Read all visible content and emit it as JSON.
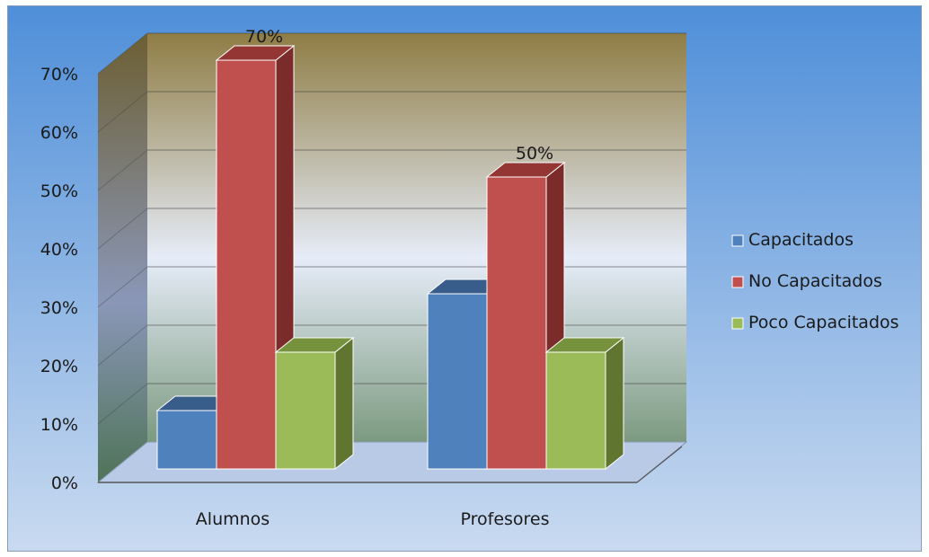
{
  "chart_data": {
    "type": "bar",
    "title": "",
    "xlabel": "",
    "ylabel": "",
    "categories": [
      "Alumnos",
      "Profesores"
    ],
    "series": [
      {
        "name": "Capacitados",
        "values": [
          10,
          30
        ],
        "color": "#4f81bd",
        "side": "#2c4d75",
        "top": "#385d8a"
      },
      {
        "name": "No Capacitados",
        "values": [
          70,
          50
        ],
        "color": "#c0504d",
        "side": "#7b2c2a",
        "top": "#943634"
      },
      {
        "name": "Poco Capacitados",
        "values": [
          20,
          20
        ],
        "color": "#9bbb59",
        "side": "#5f7530",
        "top": "#76923c"
      }
    ],
    "data_labels": [
      {
        "category": "Alumnos",
        "series": "No Capacitados",
        "text": "70%"
      },
      {
        "category": "Profesores",
        "series": "No Capacitados",
        "text": "50%"
      }
    ],
    "ylim": [
      0,
      70
    ],
    "yticks": [
      "0%",
      "10%",
      "20%",
      "30%",
      "40%",
      "50%",
      "60%",
      "70%"
    ],
    "ytick_values": [
      0,
      10,
      20,
      30,
      40,
      50,
      60,
      70
    ],
    "legend_position": "right",
    "grid": true,
    "background": {
      "outer_top": "#4f8fd9",
      "outer_bottom": "#c9daf0",
      "wall_top": "#8f7d45",
      "wall_mid": "#e6ecf8",
      "wall_bottom": "#7c9a80",
      "gridline": "#3a3a3a"
    }
  }
}
